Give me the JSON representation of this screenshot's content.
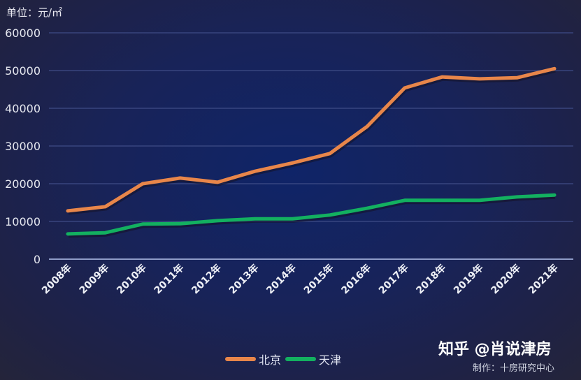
{
  "chart_data": {
    "type": "line",
    "unit_label": "单位：元/㎡",
    "categories": [
      "2008年",
      "2009年",
      "2010年",
      "2011年",
      "2012年",
      "2013年",
      "2014年",
      "2015年",
      "2016年",
      "2017年",
      "2018年",
      "2019年",
      "2020年",
      "2021年"
    ],
    "series": [
      {
        "name": "北京",
        "color": "#e8864a",
        "values": [
          12800,
          13900,
          20000,
          21500,
          20400,
          23300,
          25500,
          28000,
          35200,
          45400,
          48300,
          47800,
          48100,
          50500
        ]
      },
      {
        "name": "天津",
        "color": "#13b060",
        "values": [
          6700,
          7000,
          9300,
          9400,
          10200,
          10700,
          10700,
          11700,
          13500,
          15600,
          15600,
          15600,
          16500,
          17000
        ]
      }
    ],
    "ylim": [
      0,
      60000
    ],
    "yticks": [
      "0",
      "10000",
      "20000",
      "30000",
      "40000",
      "50000",
      "60000"
    ],
    "grid": true,
    "legend": "bottom"
  },
  "watermark": "知乎 @肖说津房",
  "credit": "制作：十房研究中心"
}
